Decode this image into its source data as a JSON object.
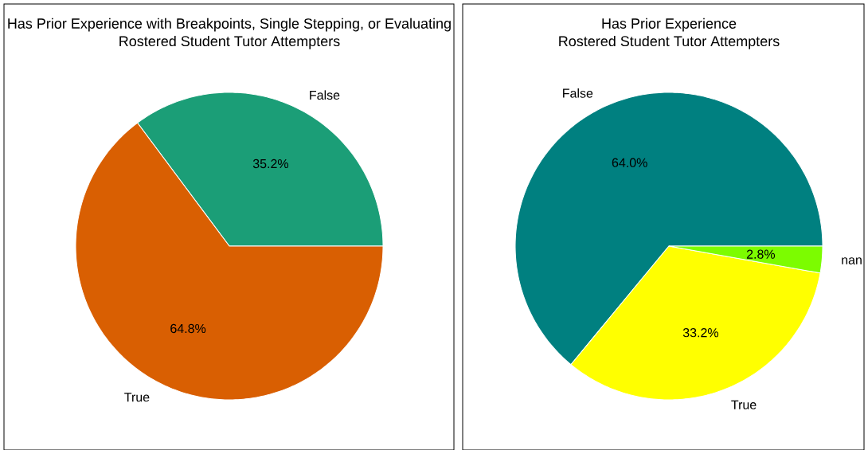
{
  "chart_data": [
    {
      "type": "pie",
      "title": "Has Prior Experience with Breakpoints, Single Stepping, or Evaluating",
      "subtitle": "Rostered Student Tutor Attempters",
      "categories": [
        "False",
        "True"
      ],
      "values": [
        35.2,
        64.8
      ],
      "colors": [
        "#1b9e77",
        "#d95f02"
      ],
      "value_labels": [
        "35.2%",
        "64.8%"
      ]
    },
    {
      "type": "pie",
      "title": "Has Prior Experience",
      "subtitle": "Rostered Student Tutor Attempters",
      "categories": [
        "False",
        "True",
        "nan"
      ],
      "values": [
        64.0,
        33.2,
        2.8
      ],
      "colors": [
        "#008080",
        "#ffff00",
        "#7cfc00"
      ],
      "value_labels": [
        "64.0%",
        "33.2%",
        "2.8%"
      ]
    }
  ]
}
